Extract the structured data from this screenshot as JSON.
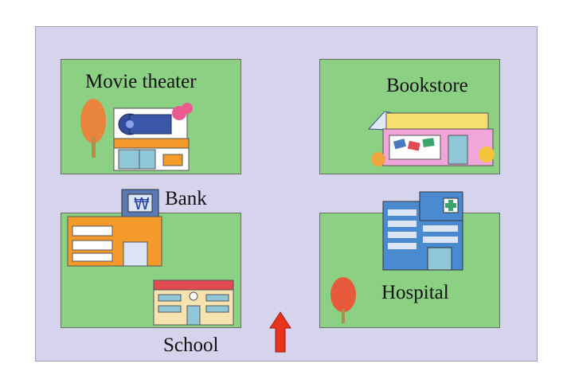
{
  "map": {
    "labels": {
      "movie_theater": "Movie theater",
      "bookstore": "Bookstore",
      "bank": "Bank",
      "hospital": "Hospital",
      "school": "School"
    },
    "bank_sign": "₩",
    "you_are_here": "arrow-up-icon"
  },
  "colors": {
    "street": "#d6d3ec",
    "block": "#8cd084",
    "arrow": "#e8341c",
    "tree": "#e8843c"
  }
}
